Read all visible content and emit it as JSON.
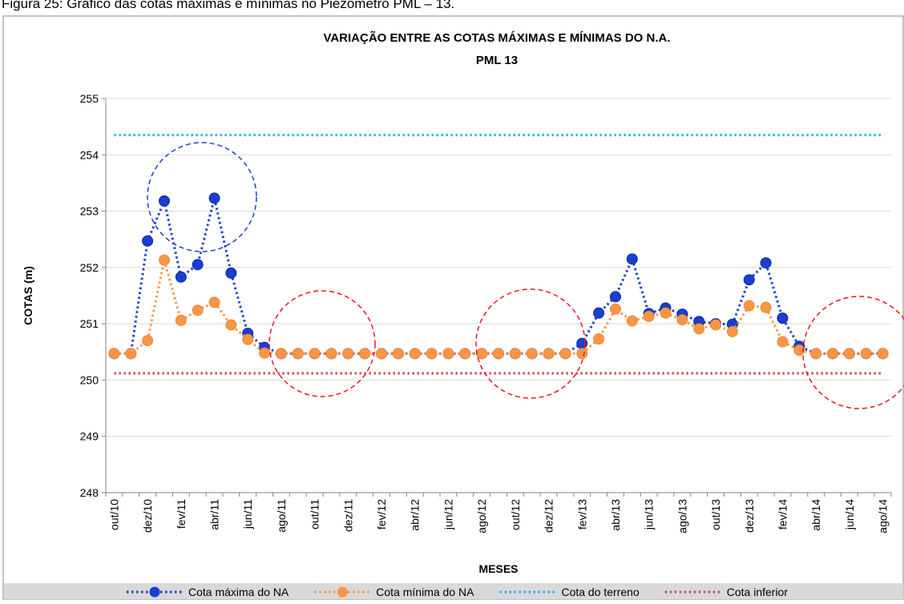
{
  "caption": "Figura 25: Gráfico das cotas máximas e mínimas no Piezômetro PML – 13.",
  "chart_data": {
    "type": "line",
    "title": "VARIAÇÃO ENTRE AS COTAS MÁXIMAS E MÍNIMAS DO N.A.",
    "subtitle": "PML 13",
    "y_label": "COTAS (m)",
    "x_label": "MESES",
    "categories": [
      "out/10",
      null,
      "dez/10",
      null,
      "fev/11",
      null,
      "abr/11",
      null,
      "jun/11",
      null,
      "ago/11",
      null,
      "out/11",
      null,
      "dez/11",
      null,
      "fev/12",
      null,
      "abr/12",
      null,
      "jun/12",
      null,
      "ago/12",
      null,
      "out/12",
      null,
      "dez/12",
      null,
      "fev/13",
      null,
      "abr/13",
      null,
      "jun/13",
      null,
      "ago/13",
      null,
      "out/13",
      null,
      "dez/13",
      null,
      "fev/14",
      null,
      "abr/14",
      null,
      "jun/14",
      null,
      "ago/14"
    ],
    "ylim": [
      248,
      255
    ],
    "yticks": [
      248,
      249,
      250,
      251,
      252,
      253,
      254,
      255
    ],
    "grid": true,
    "legend": "bottom",
    "series": [
      {
        "name": "Cota máxima do NA",
        "color": "#1a3fd0",
        "markers": true,
        "values": [
          250.47,
          250.47,
          252.47,
          253.18,
          251.83,
          252.05,
          253.23,
          251.9,
          250.83,
          250.58,
          250.47,
          250.47,
          250.47,
          250.47,
          250.47,
          250.47,
          250.47,
          250.47,
          250.47,
          250.47,
          250.47,
          250.47,
          250.47,
          250.47,
          250.47,
          250.47,
          250.47,
          250.47,
          250.65,
          251.19,
          251.48,
          252.15,
          251.18,
          251.28,
          251.17,
          251.04,
          251.0,
          250.99,
          251.78,
          252.08,
          251.1,
          250.6,
          250.47,
          250.47,
          250.47,
          250.47,
          250.47
        ]
      },
      {
        "name": "Cota mínima do NA",
        "color": "#f79646",
        "markers": true,
        "values": [
          250.47,
          250.47,
          250.7,
          252.13,
          251.06,
          251.24,
          251.38,
          250.98,
          250.72,
          250.48,
          250.47,
          250.47,
          250.47,
          250.47,
          250.47,
          250.47,
          250.47,
          250.47,
          250.47,
          250.47,
          250.47,
          250.47,
          250.47,
          250.47,
          250.47,
          250.47,
          250.47,
          250.47,
          250.47,
          250.73,
          251.26,
          251.05,
          251.13,
          251.19,
          251.07,
          250.91,
          250.98,
          250.86,
          251.32,
          251.29,
          250.68,
          250.53,
          250.47,
          250.47,
          250.47,
          250.47,
          250.47
        ]
      },
      {
        "name": "Cota do terreno",
        "color": "#1fb8ea",
        "markers": false,
        "values": [
          254.35,
          254.35,
          254.35,
          254.35,
          254.35,
          254.35,
          254.35,
          254.35,
          254.35,
          254.35,
          254.35,
          254.35,
          254.35,
          254.35,
          254.35,
          254.35,
          254.35,
          254.35,
          254.35,
          254.35,
          254.35,
          254.35,
          254.35,
          254.35,
          254.35,
          254.35,
          254.35,
          254.35,
          254.35,
          254.35,
          254.35,
          254.35,
          254.35,
          254.35,
          254.35,
          254.35,
          254.35,
          254.35,
          254.35,
          254.35,
          254.35,
          254.35,
          254.35,
          254.35,
          254.35,
          254.35,
          254.35
        ]
      },
      {
        "name": "Cota inferior",
        "color": "#c0504d",
        "markers": false,
        "values": [
          250.12,
          250.12,
          250.12,
          250.12,
          250.12,
          250.12,
          250.12,
          250.12,
          250.12,
          250.12,
          250.12,
          250.12,
          250.12,
          250.12,
          250.12,
          250.12,
          250.12,
          250.12,
          250.12,
          250.12,
          250.12,
          250.12,
          250.12,
          250.12,
          250.12,
          250.12,
          250.12,
          250.12,
          250.12,
          250.12,
          250.12,
          250.12,
          250.12,
          250.12,
          250.12,
          250.12,
          250.12,
          250.12,
          250.12,
          250.12,
          250.12,
          250.12,
          250.12,
          250.12,
          250.12,
          250.12,
          250.12
        ]
      }
    ]
  }
}
